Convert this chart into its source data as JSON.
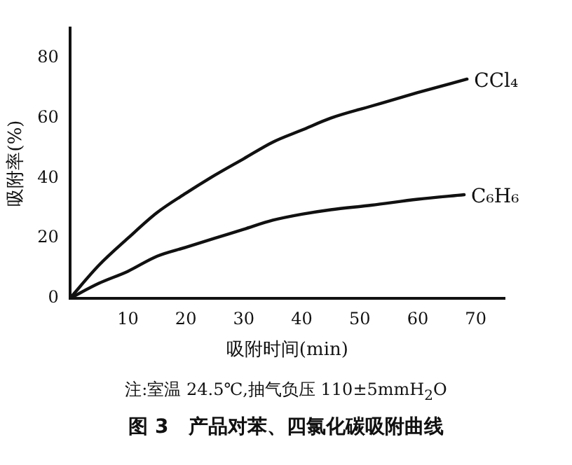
{
  "chart_data": {
    "type": "line",
    "title": "图 3　产品对苯、四氯化碳吸附曲线",
    "annotations": [
      "注:室温 24.5℃,抽气负压 110±5mmH$_{2}$O"
    ],
    "xlabel": "吸附时间(min)",
    "ylabel": "吸附率(%)",
    "xlim": [
      0,
      75
    ],
    "ylim": [
      0,
      90
    ],
    "xticks": [
      10,
      20,
      30,
      40,
      50,
      60,
      70
    ],
    "yticks": [
      0,
      20,
      40,
      60,
      80
    ],
    "grid": false,
    "legend": false,
    "marker": "none",
    "line_style": "solid",
    "series": [
      {
        "name": "CCl₄",
        "color": "#111111",
        "x": [
          0,
          5,
          10,
          15,
          20,
          25,
          30,
          35,
          40,
          45,
          52,
          60,
          68.5
        ],
        "values": [
          0,
          11,
          20,
          28.5,
          35,
          41,
          46.5,
          52,
          56,
          60,
          64,
          68.5,
          73
        ]
      },
      {
        "name": "C₆H₆",
        "color": "#111111",
        "x": [
          0,
          5,
          10,
          15,
          20,
          25,
          30,
          35,
          40,
          45,
          52,
          60,
          68
        ],
        "values": [
          0,
          5,
          9,
          14,
          17,
          20,
          23,
          26,
          28,
          29.5,
          31,
          33,
          34.5
        ]
      }
    ]
  }
}
